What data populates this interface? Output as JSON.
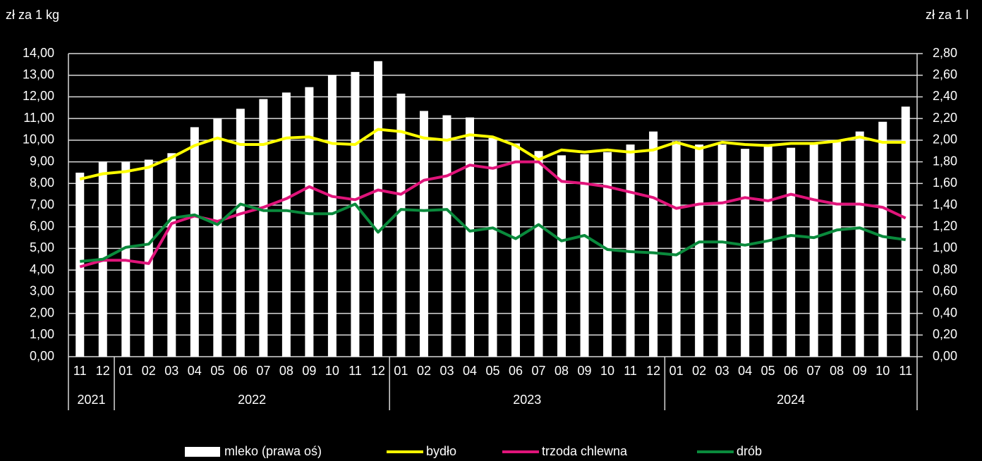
{
  "chart_data": {
    "type": "bar",
    "y_label": "zł za 1 kg",
    "y2_label": "zł za 1 l",
    "categories": [
      "11",
      "12",
      "01",
      "02",
      "03",
      "04",
      "05",
      "06",
      "07",
      "08",
      "09",
      "10",
      "11",
      "12",
      "01",
      "02",
      "03",
      "04",
      "05",
      "06",
      "07",
      "08",
      "09",
      "10",
      "11",
      "12",
      "01",
      "02",
      "03",
      "04",
      "05",
      "06",
      "07",
      "08",
      "09",
      "10",
      "11"
    ],
    "groups": [
      {
        "label": "2021",
        "span": 2
      },
      {
        "label": "2022",
        "span": 12
      },
      {
        "label": "2023",
        "span": 12
      },
      {
        "label": "2024",
        "span": 11
      }
    ],
    "ylim": [
      0,
      14
    ],
    "yticks": [
      {
        "value": 0,
        "label": "0,00"
      },
      {
        "value": 1,
        "label": "1,00"
      },
      {
        "value": 2,
        "label": "2,00"
      },
      {
        "value": 3,
        "label": "3,00"
      },
      {
        "value": 4,
        "label": "4,00"
      },
      {
        "value": 5,
        "label": "5,00"
      },
      {
        "value": 6,
        "label": "6,00"
      },
      {
        "value": 7,
        "label": "7,00"
      },
      {
        "value": 8,
        "label": "8,00"
      },
      {
        "value": 9,
        "label": "9,00"
      },
      {
        "value": 10,
        "label": "10,00"
      },
      {
        "value": 11,
        "label": "11,00"
      },
      {
        "value": 12,
        "label": "12,00"
      },
      {
        "value": 13,
        "label": "13,00"
      },
      {
        "value": 14,
        "label": "14,00"
      }
    ],
    "y2lim": [
      0,
      2.8
    ],
    "y2ticks": [
      {
        "value": 0,
        "label": "0,00"
      },
      {
        "value": 0.2,
        "label": "0,20"
      },
      {
        "value": 0.4,
        "label": "0,40"
      },
      {
        "value": 0.6,
        "label": "0,60"
      },
      {
        "value": 0.8,
        "label": "0,80"
      },
      {
        "value": 1,
        "label": "1,00"
      },
      {
        "value": 1.2,
        "label": "1,20"
      },
      {
        "value": 1.4,
        "label": "1,40"
      },
      {
        "value": 1.6,
        "label": "1,60"
      },
      {
        "value": 1.8,
        "label": "1,80"
      },
      {
        "value": 2,
        "label": "2,00"
      },
      {
        "value": 2.2,
        "label": "2,20"
      },
      {
        "value": 2.4,
        "label": "2,40"
      },
      {
        "value": 2.6,
        "label": "2,60"
      },
      {
        "value": 2.8,
        "label": "2,80"
      }
    ],
    "grid": true,
    "series": [
      {
        "name": "mleko (prawa oś)",
        "type": "bar",
        "axis": "y2",
        "color": "#ffffff",
        "values": [
          1.7,
          1.8,
          1.8,
          1.82,
          1.88,
          2.12,
          2.2,
          2.29,
          2.38,
          2.44,
          2.49,
          2.6,
          2.63,
          2.73,
          2.43,
          2.27,
          2.23,
          2.21,
          2.02,
          1.97,
          1.9,
          1.86,
          1.87,
          1.89,
          1.96,
          2.08,
          1.99,
          1.96,
          1.96,
          1.92,
          1.95,
          1.93,
          1.96,
          2.0,
          2.08,
          2.17,
          2.31
        ]
      },
      {
        "name": "bydło",
        "type": "line",
        "color": "#ffff00",
        "values": [
          8.2,
          8.45,
          8.55,
          8.75,
          9.2,
          9.75,
          10.1,
          9.8,
          9.8,
          10.1,
          10.15,
          9.85,
          9.8,
          10.5,
          10.4,
          10.1,
          10.0,
          10.25,
          10.15,
          9.75,
          9.1,
          9.55,
          9.45,
          9.55,
          9.45,
          9.55,
          9.9,
          9.6,
          9.9,
          9.8,
          9.75,
          9.85,
          9.85,
          9.95,
          10.15,
          9.9,
          9.9
        ]
      },
      {
        "name": "trzoda chlewna",
        "type": "line",
        "color": "#e0147a",
        "values": [
          4.15,
          4.45,
          4.45,
          4.3,
          6.15,
          6.5,
          6.25,
          6.6,
          6.9,
          7.3,
          7.85,
          7.4,
          7.25,
          7.7,
          7.5,
          8.15,
          8.35,
          8.85,
          8.7,
          9.0,
          9.0,
          8.1,
          8.0,
          7.85,
          7.6,
          7.35,
          6.85,
          7.05,
          7.1,
          7.35,
          7.2,
          7.5,
          7.25,
          7.05,
          7.05,
          6.9,
          6.4
        ]
      },
      {
        "name": "drób",
        "type": "line",
        "color": "#0a8a3c",
        "values": [
          4.4,
          4.5,
          5.05,
          5.2,
          6.4,
          6.55,
          6.1,
          7.05,
          6.75,
          6.75,
          6.6,
          6.6,
          7.05,
          5.75,
          6.8,
          6.75,
          6.8,
          5.8,
          5.95,
          5.45,
          6.1,
          5.35,
          5.6,
          4.95,
          4.85,
          4.8,
          4.7,
          5.3,
          5.3,
          5.15,
          5.35,
          5.6,
          5.5,
          5.85,
          5.95,
          5.55,
          5.4
        ]
      }
    ]
  }
}
